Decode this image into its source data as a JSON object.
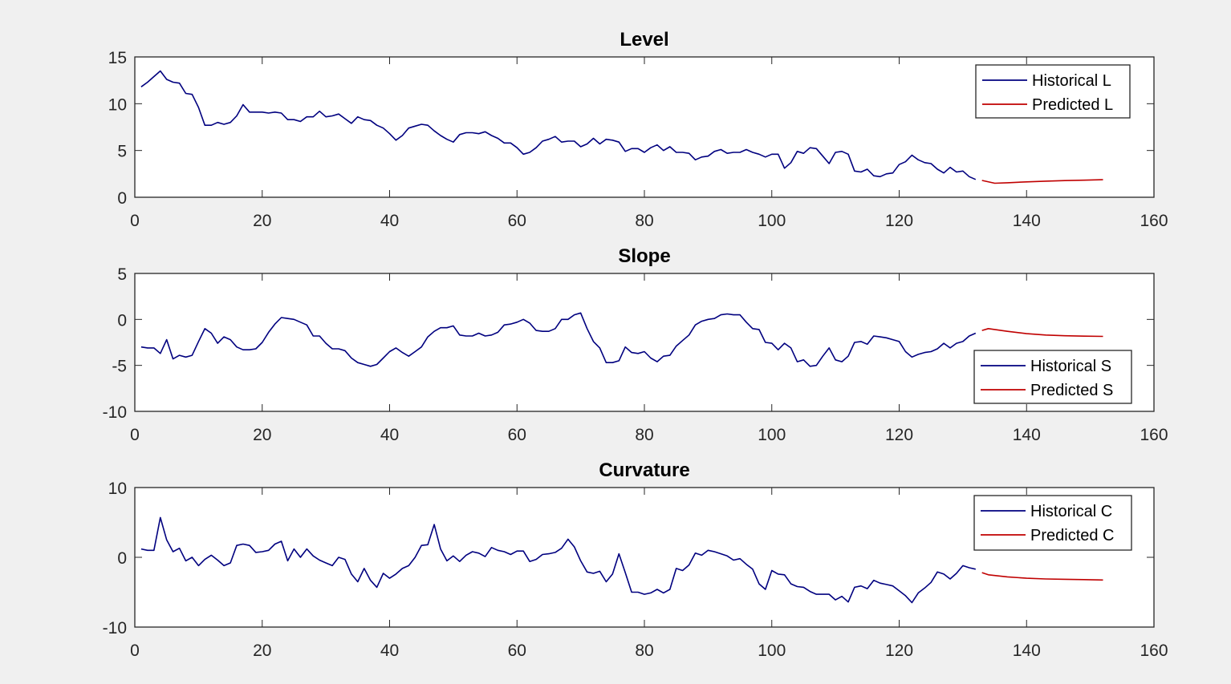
{
  "chart_data": [
    {
      "type": "line",
      "title": "Level",
      "xlim": [
        0,
        160
      ],
      "ylim": [
        0,
        15
      ],
      "xticks": [
        0,
        20,
        40,
        60,
        80,
        100,
        120,
        140,
        160
      ],
      "yticks": [
        0,
        5,
        10,
        15
      ],
      "legend": "top-right",
      "series": [
        {
          "name": "Historical L",
          "color": "#00007f",
          "x": [
            1,
            2,
            3,
            4,
            5,
            6,
            7,
            8,
            9,
            10,
            11,
            12,
            13,
            14,
            15,
            16,
            17,
            18,
            19,
            20,
            21,
            22,
            23,
            24,
            25,
            26,
            27,
            28,
            29,
            30,
            31,
            32,
            33,
            34,
            35,
            36,
            37,
            38,
            39,
            40,
            41,
            42,
            43,
            44,
            45,
            46,
            47,
            48,
            49,
            50,
            51,
            52,
            53,
            54,
            55,
            56,
            57,
            58,
            59,
            60,
            61,
            62,
            63,
            64,
            65,
            66,
            67,
            68,
            69,
            70,
            71,
            72,
            73,
            74,
            75,
            76,
            77,
            78,
            79,
            80,
            81,
            82,
            83,
            84,
            85,
            86,
            87,
            88,
            89,
            90,
            91,
            92,
            93,
            94,
            95,
            96,
            97,
            98,
            99,
            100,
            101,
            102,
            103,
            104,
            105,
            106,
            107,
            108,
            109,
            110,
            111,
            112,
            113,
            114,
            115,
            116,
            117,
            118,
            119,
            120,
            121,
            122,
            123,
            124,
            125,
            126,
            127,
            128,
            129,
            130,
            131,
            132
          ],
          "y": [
            11.8,
            12.3,
            12.9,
            13.5,
            12.6,
            12.3,
            12.2,
            11.1,
            11.0,
            9.6,
            7.7,
            7.7,
            8.0,
            7.8,
            8.0,
            8.7,
            9.9,
            9.1,
            9.1,
            9.1,
            9.0,
            9.1,
            9.0,
            8.3,
            8.3,
            8.1,
            8.6,
            8.6,
            9.2,
            8.6,
            8.7,
            8.9,
            8.4,
            7.9,
            8.6,
            8.3,
            8.2,
            7.7,
            7.4,
            6.8,
            6.1,
            6.6,
            7.4,
            7.6,
            7.8,
            7.7,
            7.1,
            6.6,
            6.2,
            5.9,
            6.7,
            6.9,
            6.9,
            6.8,
            7.0,
            6.6,
            6.3,
            5.8,
            5.8,
            5.3,
            4.6,
            4.8,
            5.3,
            6.0,
            6.2,
            6.5,
            5.9,
            6.0,
            6.0,
            5.4,
            5.7,
            6.3,
            5.7,
            6.2,
            6.1,
            5.9,
            4.9,
            5.2,
            5.2,
            4.8,
            5.3,
            5.6,
            5.0,
            5.4,
            4.8,
            4.8,
            4.7,
            4.0,
            4.3,
            4.4,
            4.9,
            5.1,
            4.7,
            4.8,
            4.8,
            5.1,
            4.8,
            4.6,
            4.3,
            4.6,
            4.6,
            3.1,
            3.7,
            4.9,
            4.7,
            5.3,
            5.2,
            4.4,
            3.6,
            4.8,
            4.9,
            4.6,
            2.8,
            2.7,
            3.0,
            2.3,
            2.2,
            2.5,
            2.6,
            3.5,
            3.8,
            4.5,
            4.0,
            3.7,
            3.6,
            3.0,
            2.6,
            3.2,
            2.7,
            2.8,
            2.2,
            1.9
          ]
        },
        {
          "name": "Predicted L",
          "color": "#c00000",
          "x": [
            133,
            135,
            137,
            140,
            143,
            146,
            149,
            152
          ],
          "y": [
            1.8,
            1.5,
            1.55,
            1.65,
            1.72,
            1.78,
            1.83,
            1.88
          ]
        }
      ]
    },
    {
      "type": "line",
      "title": "Slope",
      "xlim": [
        0,
        160
      ],
      "ylim": [
        -10,
        5
      ],
      "xticks": [
        0,
        20,
        40,
        60,
        80,
        100,
        120,
        140,
        160
      ],
      "yticks": [
        -10,
        -5,
        0,
        5
      ],
      "legend": "bottom-right",
      "series": [
        {
          "name": "Historical S",
          "color": "#00007f",
          "x": [
            1,
            2,
            3,
            4,
            5,
            6,
            7,
            8,
            9,
            10,
            11,
            12,
            13,
            14,
            15,
            16,
            17,
            18,
            19,
            20,
            21,
            22,
            23,
            24,
            25,
            26,
            27,
            28,
            29,
            30,
            31,
            32,
            33,
            34,
            35,
            36,
            37,
            38,
            39,
            40,
            41,
            42,
            43,
            44,
            45,
            46,
            47,
            48,
            49,
            50,
            51,
            52,
            53,
            54,
            55,
            56,
            57,
            58,
            59,
            60,
            61,
            62,
            63,
            64,
            65,
            66,
            67,
            68,
            69,
            70,
            71,
            72,
            73,
            74,
            75,
            76,
            77,
            78,
            79,
            80,
            81,
            82,
            83,
            84,
            85,
            86,
            87,
            88,
            89,
            90,
            91,
            92,
            93,
            94,
            95,
            96,
            97,
            98,
            99,
            100,
            101,
            102,
            103,
            104,
            105,
            106,
            107,
            108,
            109,
            110,
            111,
            112,
            113,
            114,
            115,
            116,
            117,
            118,
            119,
            120,
            121,
            122,
            123,
            124,
            125,
            126,
            127,
            128,
            129,
            130,
            131,
            132
          ],
          "y": [
            -3.0,
            -3.1,
            -3.1,
            -3.7,
            -2.2,
            -4.3,
            -3.9,
            -4.1,
            -3.9,
            -2.4,
            -1.0,
            -1.5,
            -2.6,
            -1.9,
            -2.2,
            -3.0,
            -3.3,
            -3.3,
            -3.2,
            -2.5,
            -1.4,
            -0.5,
            0.2,
            0.1,
            0.0,
            -0.3,
            -0.6,
            -1.8,
            -1.8,
            -2.6,
            -3.2,
            -3.2,
            -3.4,
            -4.2,
            -4.7,
            -4.9,
            -5.1,
            -4.9,
            -4.2,
            -3.5,
            -3.1,
            -3.6,
            -4.0,
            -3.5,
            -3.0,
            -1.9,
            -1.3,
            -0.9,
            -0.9,
            -0.7,
            -1.7,
            -1.8,
            -1.8,
            -1.5,
            -1.8,
            -1.7,
            -1.4,
            -0.6,
            -0.5,
            -0.3,
            0.0,
            -0.4,
            -1.2,
            -1.3,
            -1.3,
            -1.0,
            0.0,
            0.0,
            0.5,
            0.7,
            -1.0,
            -2.4,
            -3.1,
            -4.7,
            -4.7,
            -4.5,
            -3.0,
            -3.6,
            -3.7,
            -3.5,
            -4.2,
            -4.6,
            -4.0,
            -3.9,
            -2.9,
            -2.3,
            -1.7,
            -0.6,
            -0.2,
            0.0,
            0.1,
            0.5,
            0.6,
            0.5,
            0.5,
            -0.3,
            -1.0,
            -1.1,
            -2.5,
            -2.6,
            -3.3,
            -2.6,
            -3.1,
            -4.6,
            -4.4,
            -5.1,
            -5.0,
            -4.0,
            -3.1,
            -4.4,
            -4.6,
            -4.0,
            -2.5,
            -2.4,
            -2.7,
            -1.8,
            -1.9,
            -2.0,
            -2.2,
            -2.4,
            -3.5,
            -4.1,
            -3.8,
            -3.6,
            -3.5,
            -3.2,
            -2.6,
            -3.1,
            -2.6,
            -2.4,
            -1.8,
            -1.5
          ]
        },
        {
          "name": "Predicted S",
          "color": "#c00000",
          "x": [
            133,
            134,
            137,
            140,
            143,
            146,
            149,
            152
          ],
          "y": [
            -1.2,
            -1.0,
            -1.3,
            -1.55,
            -1.7,
            -1.78,
            -1.82,
            -1.85
          ]
        }
      ]
    },
    {
      "type": "line",
      "title": "Curvature",
      "xlim": [
        0,
        160
      ],
      "ylim": [
        -10,
        10
      ],
      "xticks": [
        0,
        20,
        40,
        60,
        80,
        100,
        120,
        140,
        160
      ],
      "yticks": [
        -10,
        0,
        10
      ],
      "legend": "top-right",
      "series": [
        {
          "name": "Historical C",
          "color": "#00007f",
          "x": [
            1,
            2,
            3,
            4,
            5,
            6,
            7,
            8,
            9,
            10,
            11,
            12,
            13,
            14,
            15,
            16,
            17,
            18,
            19,
            20,
            21,
            22,
            23,
            24,
            25,
            26,
            27,
            28,
            29,
            30,
            31,
            32,
            33,
            34,
            35,
            36,
            37,
            38,
            39,
            40,
            41,
            42,
            43,
            44,
            45,
            46,
            47,
            48,
            49,
            50,
            51,
            52,
            53,
            54,
            55,
            56,
            57,
            58,
            59,
            60,
            61,
            62,
            63,
            64,
            65,
            66,
            67,
            68,
            69,
            70,
            71,
            72,
            73,
            74,
            75,
            76,
            77,
            78,
            79,
            80,
            81,
            82,
            83,
            84,
            85,
            86,
            87,
            88,
            89,
            90,
            91,
            92,
            93,
            94,
            95,
            96,
            97,
            98,
            99,
            100,
            101,
            102,
            103,
            104,
            105,
            106,
            107,
            108,
            109,
            110,
            111,
            112,
            113,
            114,
            115,
            116,
            117,
            118,
            119,
            120,
            121,
            122,
            123,
            124,
            125,
            126,
            127,
            128,
            129,
            130,
            131,
            132
          ],
          "y": [
            1.2,
            1.0,
            1.0,
            5.7,
            2.5,
            0.8,
            1.3,
            -0.5,
            0.0,
            -1.2,
            -0.3,
            0.3,
            -0.4,
            -1.2,
            -0.8,
            1.7,
            1.9,
            1.7,
            0.7,
            0.8,
            1.0,
            1.9,
            2.3,
            -0.5,
            1.2,
            0.0,
            1.2,
            0.2,
            -0.4,
            -0.8,
            -1.2,
            0.0,
            -0.3,
            -2.4,
            -3.5,
            -1.6,
            -3.3,
            -4.3,
            -2.3,
            -3.0,
            -2.4,
            -1.6,
            -1.2,
            0.0,
            1.7,
            1.8,
            4.7,
            1.2,
            -0.5,
            0.2,
            -0.6,
            0.3,
            0.8,
            0.6,
            0.1,
            1.4,
            1.0,
            0.8,
            0.4,
            0.9,
            0.9,
            -0.6,
            -0.3,
            0.4,
            0.5,
            0.7,
            1.3,
            2.6,
            1.5,
            -0.5,
            -2.1,
            -2.3,
            -2.0,
            -3.5,
            -2.4,
            0.5,
            -2.2,
            -5.0,
            -5.0,
            -5.3,
            -5.1,
            -4.6,
            -5.1,
            -4.6,
            -1.6,
            -1.9,
            -1.1,
            0.6,
            0.3,
            1.0,
            0.8,
            0.5,
            0.2,
            -0.4,
            -0.2,
            -1.0,
            -1.7,
            -3.8,
            -4.6,
            -1.9,
            -2.4,
            -2.5,
            -3.8,
            -4.2,
            -4.3,
            -4.9,
            -5.3,
            -5.3,
            -5.3,
            -6.1,
            -5.6,
            -6.4,
            -4.3,
            -4.1,
            -4.5,
            -3.3,
            -3.7,
            -3.9,
            -4.1,
            -4.8,
            -5.5,
            -6.5,
            -5.1,
            -4.4,
            -3.6,
            -2.1,
            -2.4,
            -3.1,
            -2.3,
            -1.2,
            -1.5,
            -1.7
          ]
        },
        {
          "name": "Predicted C",
          "color": "#c00000",
          "x": [
            133,
            134,
            137,
            140,
            143,
            146,
            149,
            152
          ],
          "y": [
            -2.2,
            -2.5,
            -2.8,
            -3.0,
            -3.1,
            -3.15,
            -3.2,
            -3.25
          ]
        }
      ]
    }
  ]
}
